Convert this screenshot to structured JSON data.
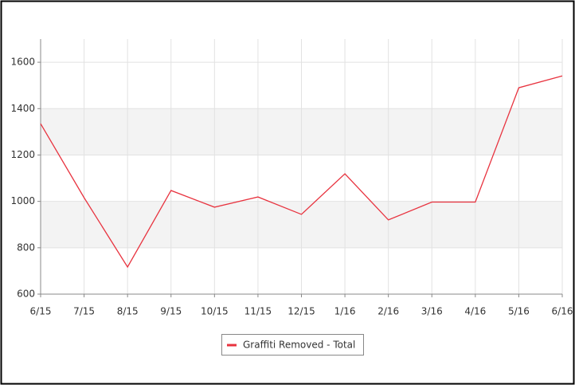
{
  "chart_data": {
    "type": "line",
    "categories": [
      "6/15",
      "7/15",
      "8/15",
      "9/15",
      "10/15",
      "11/15",
      "12/15",
      "1/16",
      "2/16",
      "3/16",
      "4/16",
      "5/16",
      "6/16"
    ],
    "series": [
      {
        "name": "Graffiti Removed - Total",
        "color": "#e8333f",
        "values": [
          1335,
          1016,
          717,
          1047,
          975,
          1019,
          944,
          1119,
          920,
          997,
          997,
          1490,
          1541
        ]
      }
    ],
    "ylim": [
      600,
      1700
    ],
    "yticks": [
      600,
      800,
      1000,
      1200,
      1400,
      1600
    ],
    "grid": true,
    "legend": "bottom"
  }
}
